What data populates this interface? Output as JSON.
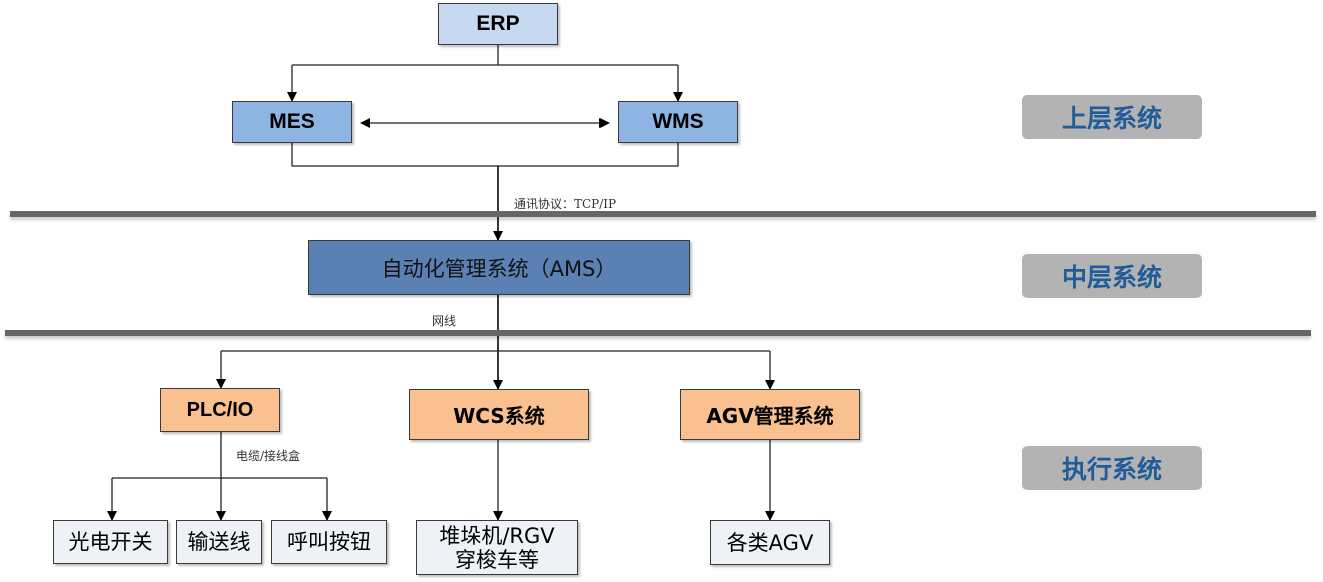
{
  "upper": {
    "erp": "ERP",
    "mes": "MES",
    "wms": "WMS",
    "protocol_label": "通讯协议：TCP/IP"
  },
  "middle": {
    "ams": "自动化管理系统（AMS）",
    "network_label": "网线"
  },
  "execution": {
    "plc": "PLC/IO",
    "wcs": "WCS系统",
    "agv_mgmt": "AGV管理系统",
    "cable_label": "电缆/接线盒",
    "leaves": [
      "光电开关",
      "输送线",
      "呼叫按钮"
    ],
    "stacker_line1": "堆垛机/RGV",
    "stacker_line2": "穿梭车等",
    "agv": "各类AGV"
  },
  "tiers": [
    "上层系统",
    "中层系统",
    "执行系统"
  ],
  "colors": {
    "erp": "#c6d9f1",
    "mes_wms": "#8eb4e3",
    "ams": "#5a80b4",
    "exec": "#fac090",
    "leaf": "#eef1f6",
    "tier_bg": "#b3b3b3",
    "tier_text": "#1f5c99"
  }
}
